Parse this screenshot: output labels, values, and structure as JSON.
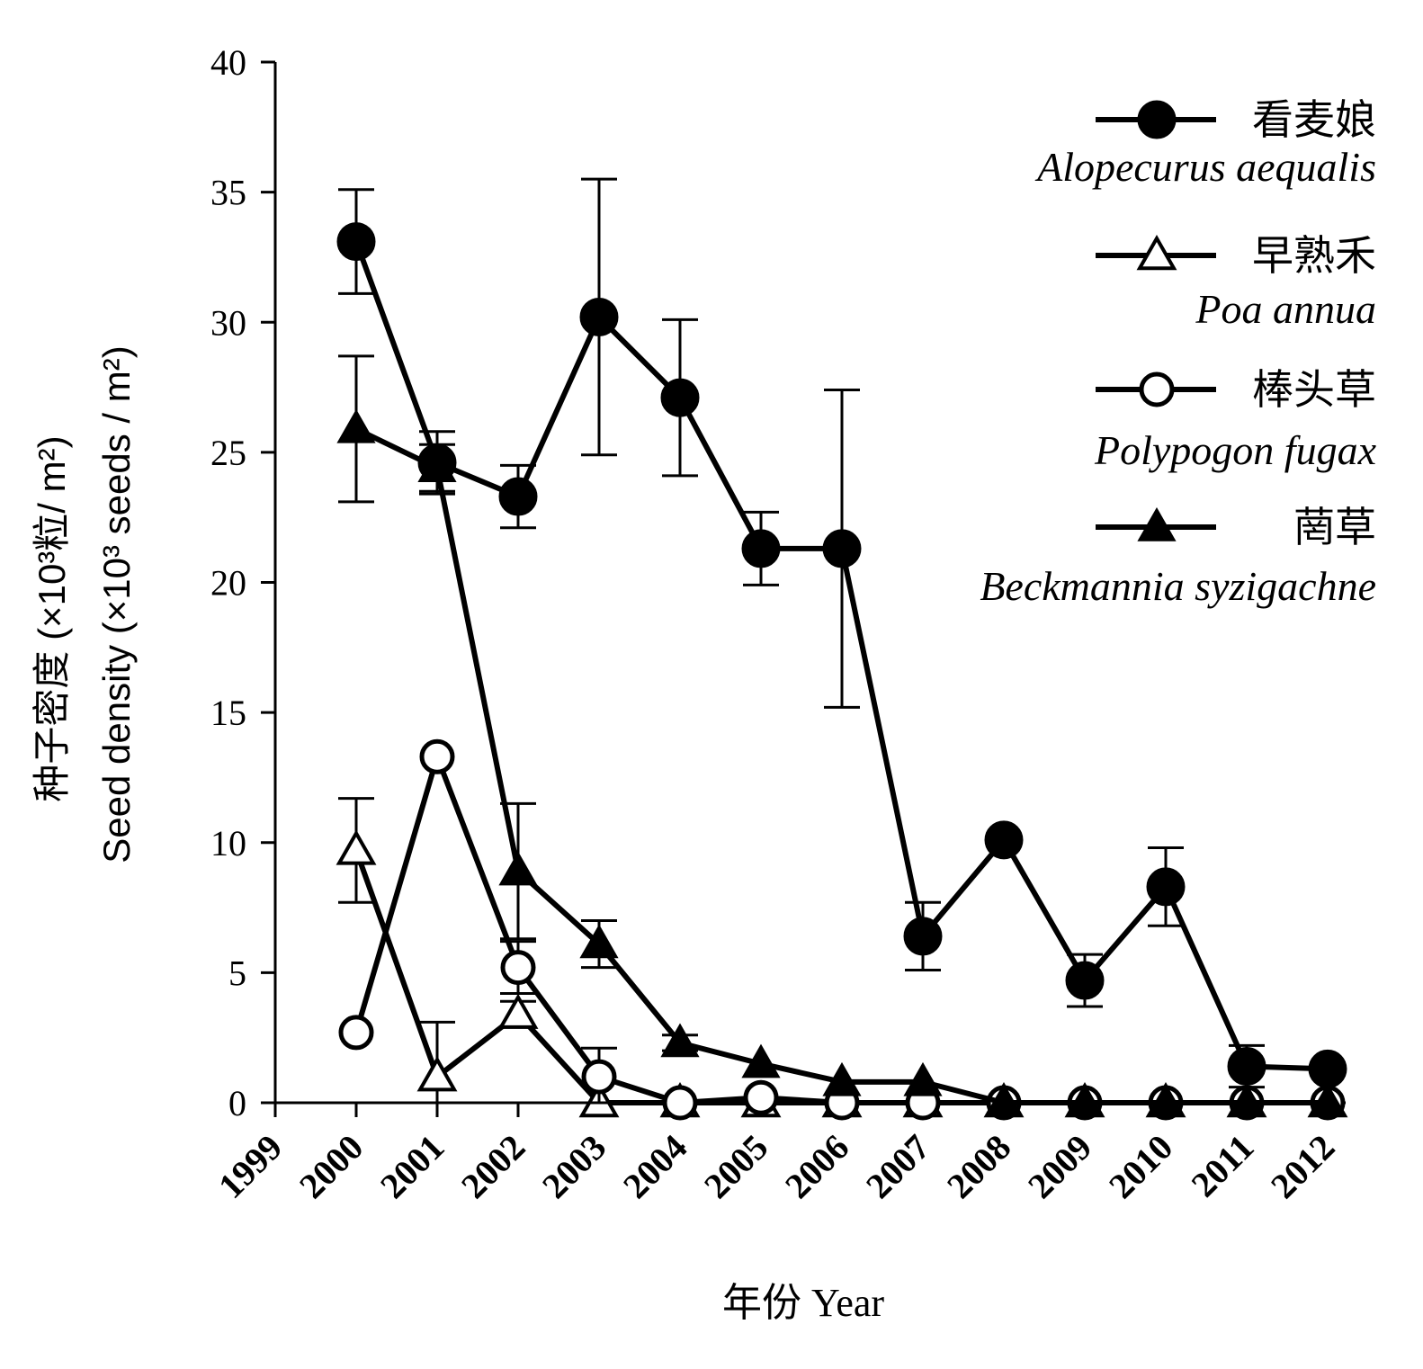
{
  "chart_data": {
    "type": "line",
    "xlabel": "年份 Year",
    "ylabel_cn": "种子密度 (×10³粒/ m²)",
    "ylabel_en": "Seed density (×10³ seeds / m²)",
    "ylim": [
      0,
      40
    ],
    "yticks": [
      0,
      5,
      10,
      15,
      20,
      25,
      30,
      35,
      40
    ],
    "xticks": [
      "1999",
      "2000",
      "2001",
      "2002",
      "2003",
      "2004",
      "2005",
      "2006",
      "2007",
      "2008",
      "2009",
      "2010",
      "2011",
      "2012"
    ],
    "x": [
      2000,
      2001,
      2002,
      2003,
      2004,
      2005,
      2006,
      2007,
      2008,
      2009,
      2010,
      2011,
      2012
    ],
    "grid": false,
    "legend_position": "top-right",
    "series": [
      {
        "name_cn": "看麦娘",
        "name_la": "Alopecurus aequalis",
        "marker": "filled-circle",
        "values": [
          33.1,
          24.6,
          23.3,
          30.2,
          27.1,
          21.3,
          21.3,
          6.4,
          10.1,
          4.7,
          8.3,
          1.4,
          1.3
        ],
        "errors": [
          2.0,
          1.2,
          1.2,
          5.3,
          3.0,
          1.4,
          6.1,
          1.3,
          0,
          1.0,
          1.5,
          0.8,
          0
        ]
      },
      {
        "name_cn": "早熟禾",
        "name_la": "Poa annua",
        "marker": "open-triangle",
        "values": [
          9.7,
          1.0,
          3.4,
          0,
          0,
          0,
          0,
          0,
          0,
          0,
          0,
          0,
          0
        ],
        "errors": [
          2.0,
          2.1,
          0.5,
          0,
          0,
          0,
          0,
          0,
          0,
          0,
          0,
          0,
          0
        ]
      },
      {
        "name_cn": "棒头草",
        "name_la": "Polypogon fugax",
        "marker": "open-circle",
        "values": [
          2.7,
          13.3,
          5.2,
          1.0,
          0,
          0.2,
          0,
          0,
          0,
          0,
          0,
          0,
          0
        ],
        "errors": [
          0,
          0,
          1.0,
          1.1,
          0,
          0,
          0,
          0,
          0,
          0,
          0,
          0,
          0
        ]
      },
      {
        "name_cn": "菵草",
        "name_la": "Beckmannia syzigachne",
        "marker": "filled-triangle",
        "values": [
          25.9,
          24.4,
          8.9,
          6.1,
          2.3,
          1.5,
          0.8,
          0.8,
          0,
          0,
          0,
          0,
          0
        ],
        "errors": [
          2.8,
          0.9,
          2.6,
          0.9,
          0.3,
          0,
          0,
          0,
          0,
          0,
          0,
          0,
          0
        ]
      }
    ]
  }
}
